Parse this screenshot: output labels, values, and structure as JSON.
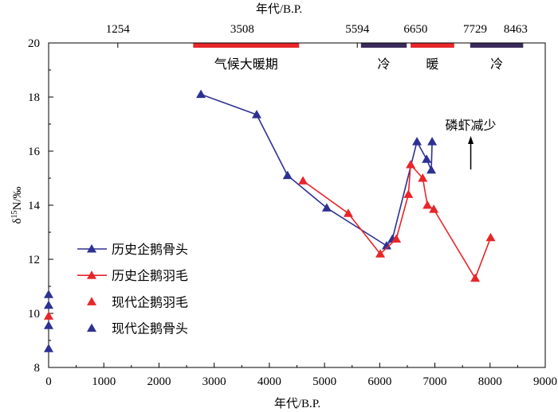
{
  "chart_data": {
    "type": "line",
    "title": "",
    "xlabel": "年代/B.P.",
    "x2label": "年代/B.P.",
    "ylabel": {
      "delta": "δ",
      "isotope": "15",
      "rest": "N/‰"
    },
    "xlim": [
      0,
      9000
    ],
    "ylim": [
      8,
      20
    ],
    "xticks": [
      0,
      1000,
      2000,
      3000,
      4000,
      5000,
      6000,
      7000,
      8000,
      9000
    ],
    "yticks": [
      8,
      10,
      12,
      14,
      16,
      18,
      20
    ],
    "top_ticks": [
      1254,
      3508,
      5594,
      6650,
      7729,
      8463
    ],
    "grid": false,
    "legend_position": "lower-left",
    "colors": {
      "bone": "#2e3192",
      "feather": "#e8262a",
      "cold": "#3b2c5c",
      "axis": "#000000"
    },
    "periods": [
      {
        "label": "气候大暖期",
        "start": 2620,
        "end": 4540,
        "color": "#e8262a"
      },
      {
        "label": "冷",
        "start": 5660,
        "end": 6490,
        "color": "#3b2c5c"
      },
      {
        "label": "暖",
        "start": 6560,
        "end": 7350,
        "color": "#e8262a"
      },
      {
        "label": "冷",
        "start": 7640,
        "end": 8600,
        "color": "#3b2c5c"
      }
    ],
    "series": [
      {
        "name": "历史企鹅骨头",
        "color": "#2e3192",
        "line": true,
        "points": [
          [
            2760,
            18.1
          ],
          [
            3770,
            17.35
          ],
          [
            4330,
            15.1
          ],
          [
            5040,
            13.9
          ],
          [
            6125,
            12.5
          ],
          [
            6230,
            12.75
          ],
          [
            6675,
            16.35
          ],
          [
            6850,
            15.7
          ],
          [
            6935,
            15.3
          ],
          [
            6950,
            16.35
          ]
        ]
      },
      {
        "name": "历史企鹅羽毛",
        "color": "#e8262a",
        "line": true,
        "points": [
          [
            4610,
            14.9
          ],
          [
            5430,
            13.7
          ],
          [
            6010,
            12.2
          ],
          [
            6300,
            12.75
          ],
          [
            6520,
            14.4
          ],
          [
            6560,
            15.5
          ],
          [
            6780,
            15.0
          ],
          [
            6865,
            14.0
          ],
          [
            6980,
            13.85
          ],
          [
            7730,
            11.3
          ],
          [
            8010,
            12.8
          ]
        ]
      },
      {
        "name": "现代企鹅羽毛",
        "color": "#e8262a",
        "line": false,
        "points": [
          [
            0,
            9.9
          ]
        ]
      },
      {
        "name": "现代企鹅骨头",
        "color": "#2e3192",
        "line": false,
        "points": [
          [
            0,
            10.7
          ],
          [
            0,
            10.3
          ],
          [
            0,
            9.55
          ],
          [
            0,
            8.7
          ]
        ]
      }
    ],
    "annotations": [
      {
        "text": "磷虾减少",
        "x": 7650,
        "text_y": 16.8,
        "arrow_from": 15.32,
        "arrow_to": 16.56
      }
    ]
  }
}
